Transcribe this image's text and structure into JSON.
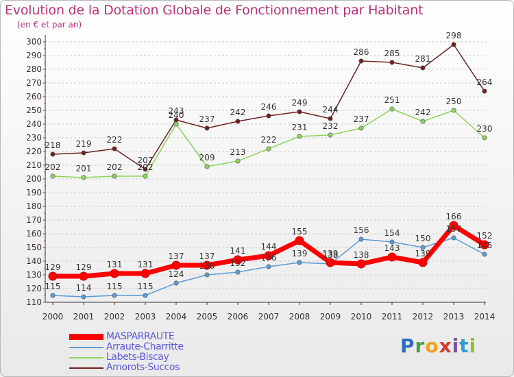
{
  "title": "Evolution de la Dotation Globale de Fonctionnement par Habitant",
  "subtitle": "(en € et par an)",
  "logo_letters": [
    {
      "ch": "P",
      "color": "#2f6cc1"
    },
    {
      "ch": "r",
      "color": "#4aa03d"
    },
    {
      "ch": "o",
      "color": "#f0a21a"
    },
    {
      "ch": "x",
      "color": "#d63a2a"
    },
    {
      "ch": "i",
      "color": "#7a4fa0"
    },
    {
      "ch": "t",
      "color": "#2f9fd0"
    },
    {
      "ch": "i",
      "color": "#8fbf2a"
    }
  ],
  "chart_data": {
    "type": "line",
    "title": "Evolution de la Dotation Globale de Fonctionnement par Habitant",
    "subtitle": "(en € et par an)",
    "xlabel": "",
    "ylabel": "",
    "x": [
      "2000",
      "2001",
      "2002",
      "2003",
      "2004",
      "2005",
      "2006",
      "2007",
      "2008",
      "2009",
      "2010",
      "2011",
      "2012",
      "2013",
      "2014"
    ],
    "ylim": [
      110,
      300
    ],
    "yticks": [
      110,
      120,
      130,
      140,
      150,
      160,
      170,
      180,
      190,
      200,
      210,
      220,
      230,
      240,
      250,
      260,
      270,
      280,
      290,
      300
    ],
    "grid": "horizontal dashed",
    "legend": "bottom",
    "series": [
      {
        "name": "MASPARRAUTE",
        "color": "#ff0000",
        "values": [
          129,
          129,
          131,
          131,
          137,
          137,
          141,
          144,
          155,
          139,
          138,
          143,
          139,
          166,
          152
        ]
      },
      {
        "name": "Arraute-Charritte",
        "color": "#5b9bd5",
        "values": [
          115,
          114,
          115,
          115,
          124,
          130,
          132,
          136,
          139,
          138,
          156,
          154,
          150,
          157,
          145
        ]
      },
      {
        "name": "Labets-Biscay",
        "color": "#8cd45a",
        "values": [
          202,
          201,
          202,
          202,
          240,
          209,
          213,
          222,
          231,
          232,
          237,
          251,
          242,
          250,
          230
        ]
      },
      {
        "name": "Amorots-Succos",
        "color": "#6e2020",
        "values": [
          218,
          219,
          222,
          207,
          243,
          237,
          242,
          246,
          249,
          244,
          286,
          285,
          281,
          298,
          264
        ]
      }
    ]
  }
}
